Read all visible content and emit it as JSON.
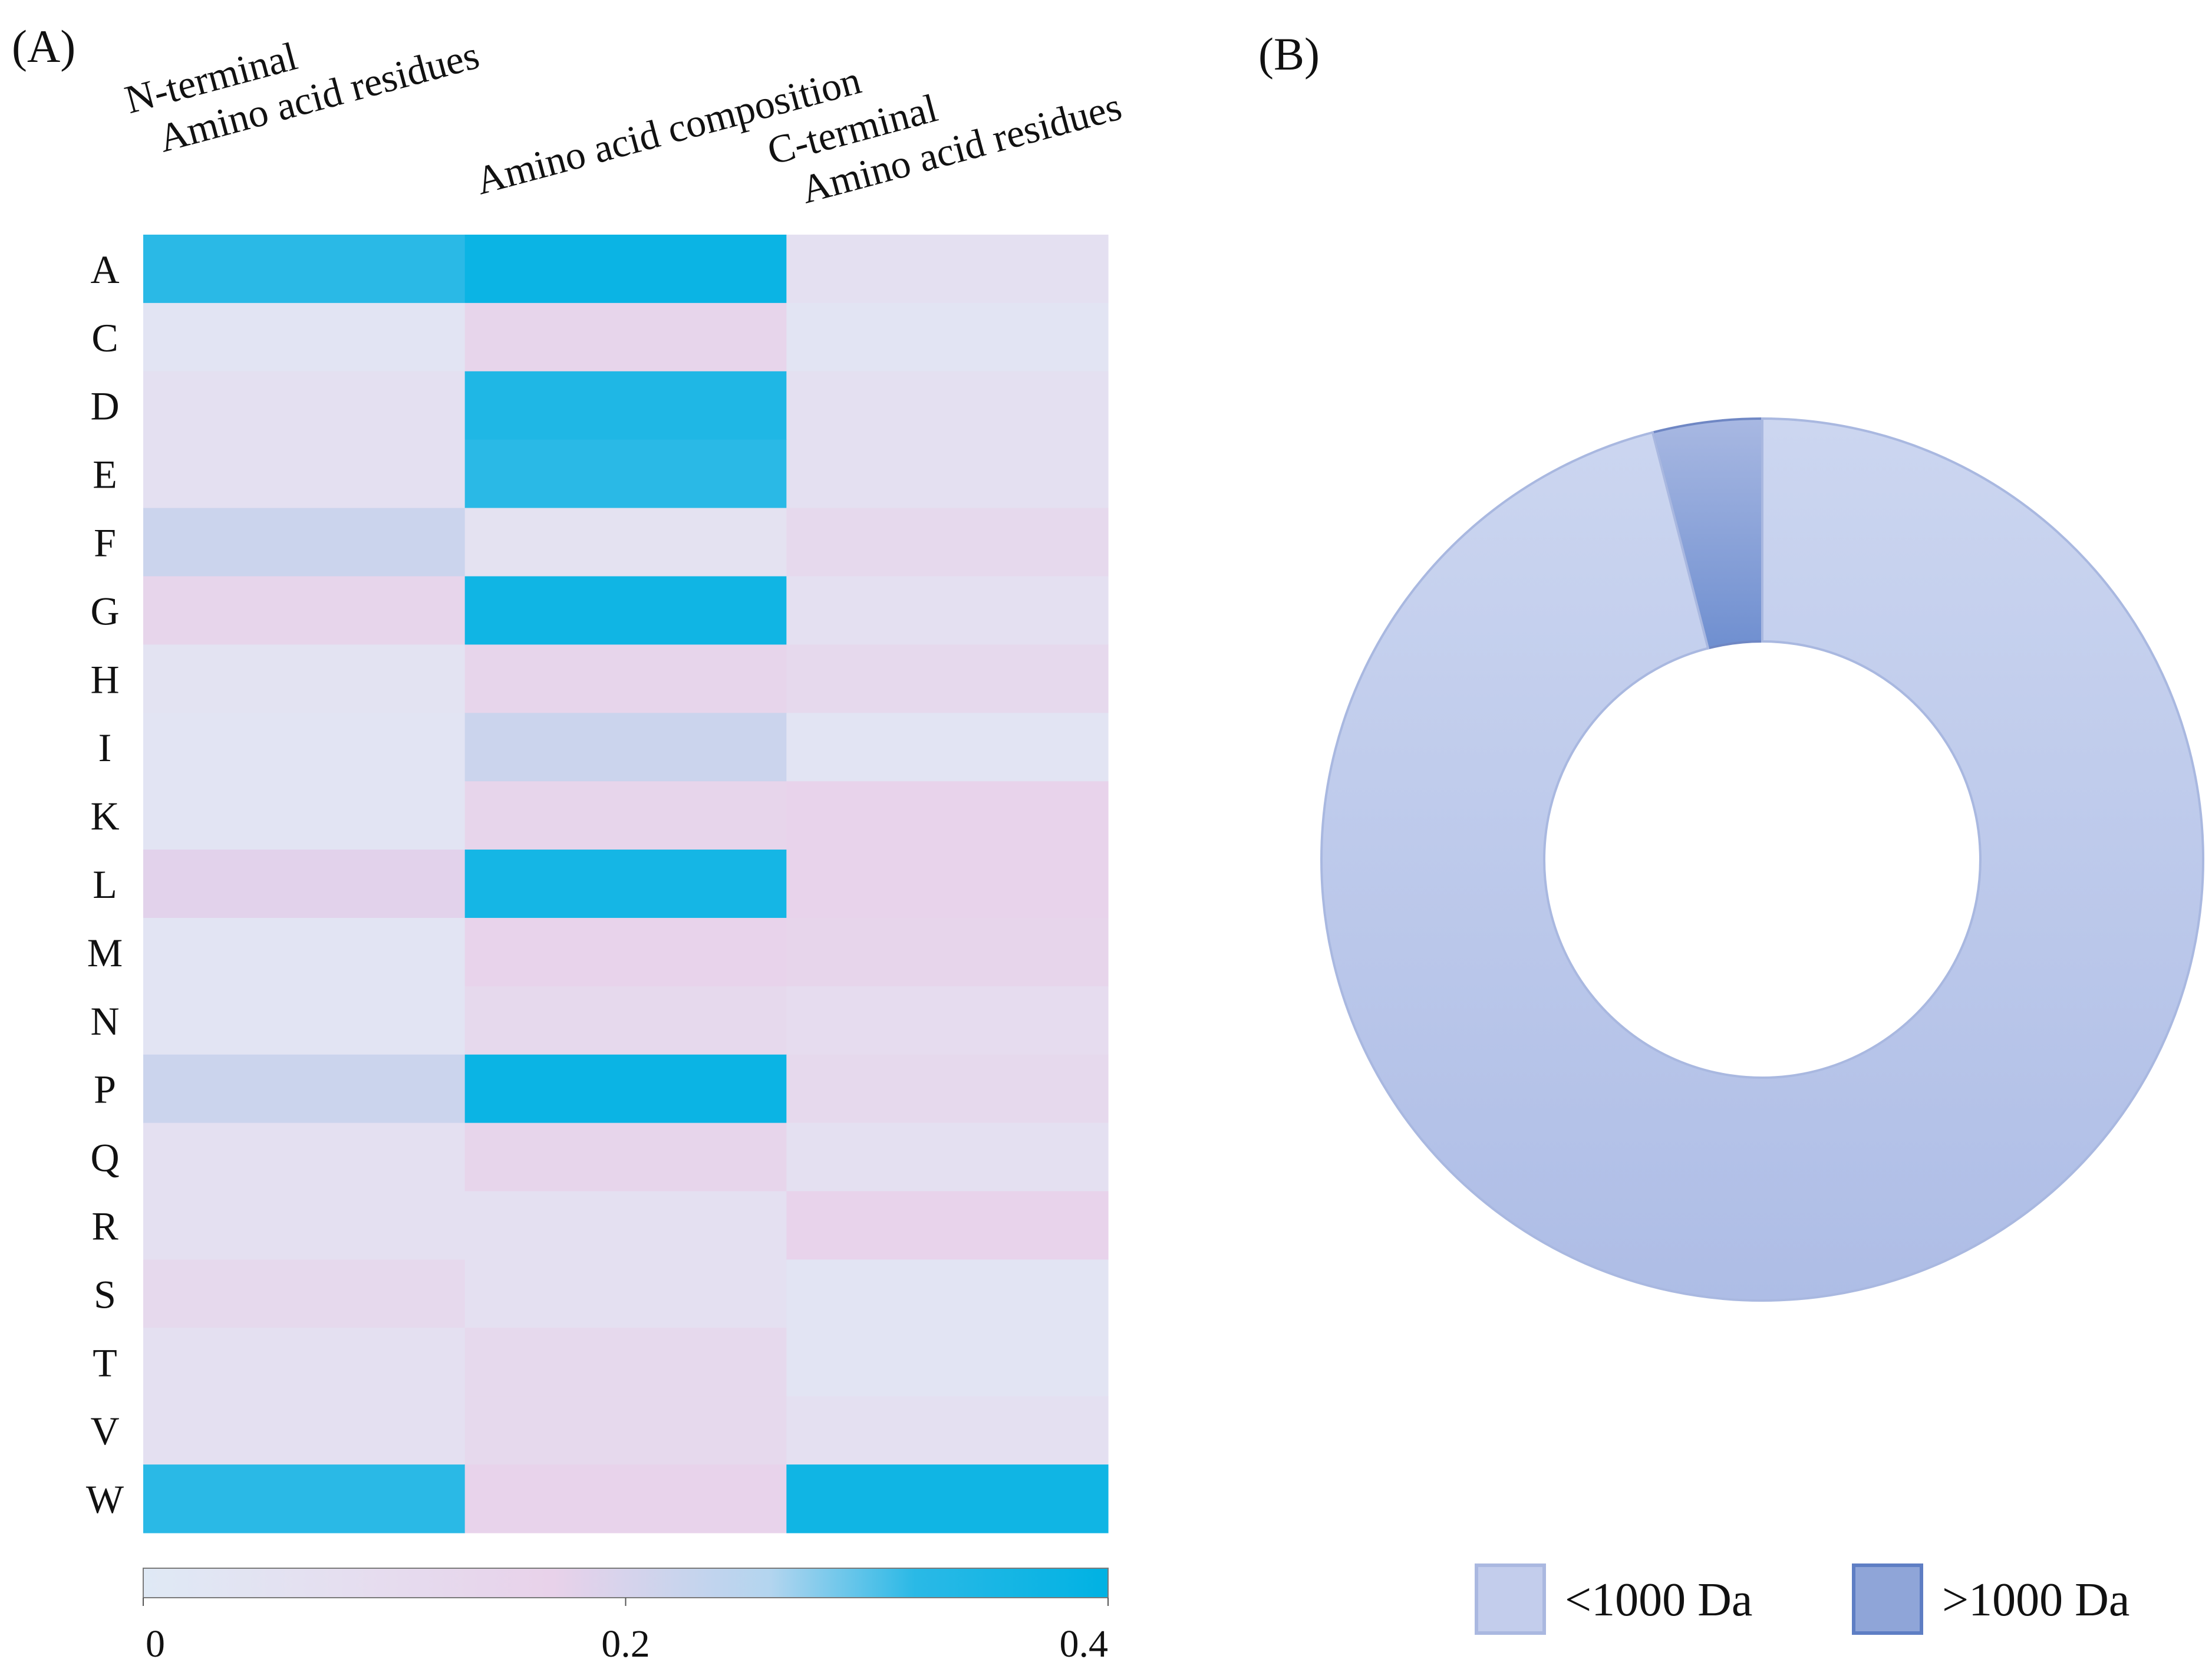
{
  "chart_data": [
    {
      "type": "heatmap",
      "panel_label": "(A)",
      "columns": [
        {
          "lines": [
            "N-terminal",
            "Amino acid residues"
          ]
        },
        {
          "lines": [
            "Amino acid composition"
          ]
        },
        {
          "lines": [
            "C-terminal",
            "Amino acid residues"
          ]
        }
      ],
      "rows": [
        "A",
        "C",
        "D",
        "E",
        "F",
        "G",
        "H",
        "I",
        "K",
        "L",
        "M",
        "N",
        "P",
        "Q",
        "R",
        "S",
        "T",
        "V",
        "W"
      ],
      "values": [
        [
          0.32,
          0.38,
          0.07
        ],
        [
          0.04,
          0.15,
          0.04
        ],
        [
          0.07,
          0.34,
          0.07
        ],
        [
          0.07,
          0.32,
          0.07
        ],
        [
          0.22,
          0.06,
          0.12
        ],
        [
          0.15,
          0.37,
          0.07
        ],
        [
          0.05,
          0.15,
          0.12
        ],
        [
          0.04,
          0.22,
          0.04
        ],
        [
          0.04,
          0.15,
          0.16
        ],
        [
          0.18,
          0.36,
          0.16
        ],
        [
          0.04,
          0.16,
          0.15
        ],
        [
          0.04,
          0.12,
          0.1
        ],
        [
          0.22,
          0.38,
          0.12
        ],
        [
          0.07,
          0.15,
          0.07
        ],
        [
          0.07,
          0.07,
          0.16
        ],
        [
          0.12,
          0.07,
          0.04
        ],
        [
          0.07,
          0.12,
          0.04
        ],
        [
          0.07,
          0.12,
          0.07
        ],
        [
          0.32,
          0.16,
          0.37
        ]
      ],
      "colorbar": {
        "range": [
          0,
          0.4
        ],
        "tick_values": [
          0,
          0.2,
          0.4
        ],
        "tick_labels": [
          "0",
          "0.2",
          "0.4"
        ],
        "stops": [
          {
            "value": 0.0,
            "color": "#dfe9f5"
          },
          {
            "value": 0.08,
            "color": "#e5dff0"
          },
          {
            "value": 0.17,
            "color": "#e8d2ea"
          },
          {
            "value": 0.26,
            "color": "#b3d5ef"
          },
          {
            "value": 0.32,
            "color": "#2ab9e6"
          },
          {
            "value": 0.4,
            "color": "#00b2e3"
          }
        ]
      }
    },
    {
      "type": "pie",
      "panel_label": "(B)",
      "donut": true,
      "slices": [
        {
          "label": "<1000 Da",
          "value": 96,
          "color": "#bac7e8"
        },
        {
          "label": ">1000 Da",
          "value": 4,
          "color": "#8da3d6"
        }
      ],
      "legend_position": "bottom-right"
    }
  ]
}
